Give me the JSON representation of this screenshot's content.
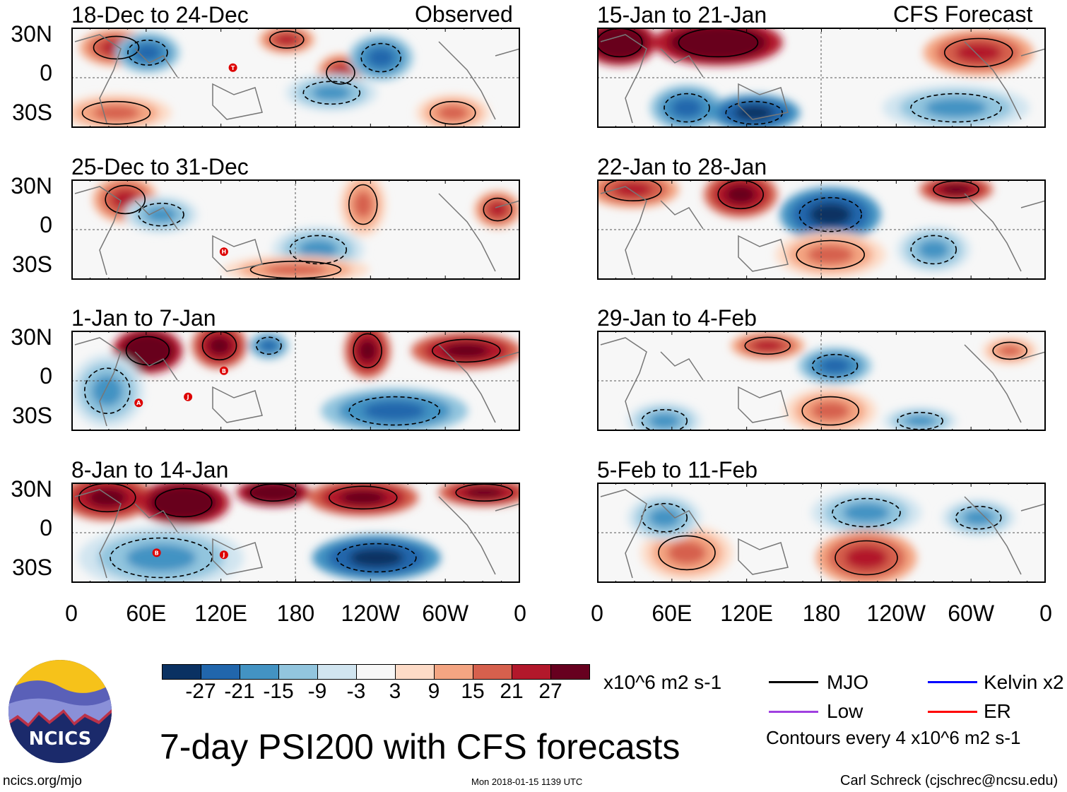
{
  "figure": {
    "title": "7-day PSI200 with CFS forecasts",
    "units": "x10^6 m2 s-1",
    "observed_label": "Observed",
    "forecast_label": "CFS Forecast",
    "contour_note": "Contours every 4 x10^6 m2 s-1",
    "website": "ncics.org/mjo",
    "timestamp": "Mon 2018-01-15 1139 UTC",
    "author": "Carl Schreck (cjschrec@ncsu.edu)",
    "logo_text": "NCICS"
  },
  "panels": {
    "observed": [
      "18-Dec to 24-Dec",
      "25-Dec to 31-Dec",
      "1-Jan to 7-Jan",
      "8-Jan to 14-Jan"
    ],
    "forecast": [
      "15-Jan to 21-Jan",
      "22-Jan to 28-Jan",
      "29-Jan to 4-Feb",
      "5-Feb to 11-Feb"
    ]
  },
  "storm_markers": {
    "p0": [
      "T"
    ],
    "p1": [
      "H"
    ],
    "p2": [
      "B",
      "A",
      "J"
    ],
    "p3": [
      "B",
      "J"
    ]
  },
  "axes": {
    "lat_labels": [
      "30N",
      "0",
      "30S"
    ],
    "lon_labels": [
      "0",
      "60E",
      "120E",
      "180",
      "120W",
      "60W",
      "0"
    ]
  },
  "colorbar": {
    "labels": [
      "-27",
      "-21",
      "-15",
      "-9",
      "-3",
      "3",
      "9",
      "15",
      "21",
      "27"
    ],
    "colors": [
      "#0a3162",
      "#2166ac",
      "#4393c3",
      "#92c5de",
      "#d1e5f0",
      "#f7f7f7",
      "#fddbc7",
      "#f4a582",
      "#d6604d",
      "#b2182b",
      "#67001f"
    ]
  },
  "legend": [
    {
      "label": "MJO",
      "color": "#000000"
    },
    {
      "label": "Kelvin x2",
      "color": "#0000ff"
    },
    {
      "label": "Low",
      "color": "#a040e0"
    },
    {
      "label": "ER",
      "color": "#ff0000"
    }
  ]
}
